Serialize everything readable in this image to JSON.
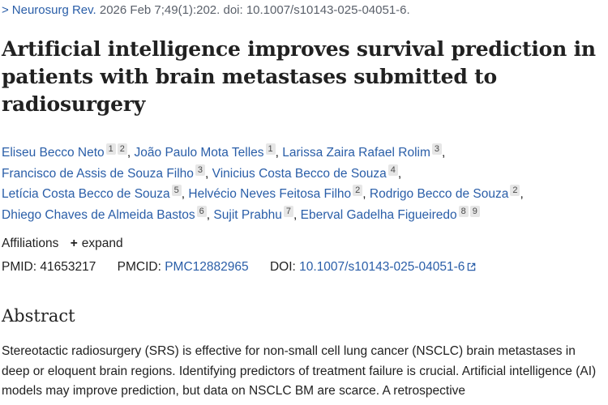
{
  "citation": {
    "chevron": ">",
    "journal": "Neurosurg Rev.",
    "details": " 2026 Feb 7;49(1):202. doi: 10.1007/s10143-025-04051-6."
  },
  "title": "Artificial intelligence improves survival prediction in patients with brain metastases submitted to radiosurgery",
  "author_lines": [
    [
      {
        "name": "Eliseu Becco Neto",
        "affs": [
          "1",
          "2"
        ]
      },
      {
        "name": "João Paulo Mota Telles",
        "affs": [
          "1"
        ]
      },
      {
        "name": "Larissa Zaira Rafael Rolim",
        "affs": [
          "3"
        ]
      }
    ],
    [
      {
        "name": "Francisco de Assis de Souza Filho",
        "affs": [
          "3"
        ]
      },
      {
        "name": "Vinicius Costa Becco de Souza",
        "affs": [
          "4"
        ]
      }
    ],
    [
      {
        "name": "Letícia Costa Becco de Souza",
        "affs": [
          "5"
        ]
      },
      {
        "name": "Helvécio Neves Feitosa Filho",
        "affs": [
          "2"
        ]
      },
      {
        "name": "Rodrigo Becco de Souza",
        "affs": [
          "2"
        ]
      }
    ],
    [
      {
        "name": "Dhiego Chaves de Almeida Bastos",
        "affs": [
          "6"
        ]
      },
      {
        "name": "Sujit Prabhu",
        "affs": [
          "7"
        ]
      },
      {
        "name": "Eberval Gadelha Figueiredo",
        "affs": [
          "8",
          "9"
        ]
      }
    ]
  ],
  "affiliations": {
    "label": "Affiliations",
    "plus": "+",
    "expand": "expand"
  },
  "ids": {
    "pmid_label": "PMID:",
    "pmid": "41653217",
    "pmcid_label": "PMCID:",
    "pmcid": "PMC12882965",
    "doi_label": "DOI:",
    "doi": "10.1007/s10143-025-04051-6"
  },
  "abstract": {
    "heading": "Abstract",
    "text": "Stereotactic radiosurgery (SRS) is effective for non-small cell lung cancer (NSCLC) brain metastases in deep or eloquent brain regions. Identifying predictors of treatment failure is crucial. Artificial intelligence (AI) models may improve prediction, but data on NSCLC BM are scarce. A retrospective"
  },
  "colors": {
    "link": "#2a5ea8",
    "text": "#212121",
    "badge_bg": "#e6e6e6"
  }
}
